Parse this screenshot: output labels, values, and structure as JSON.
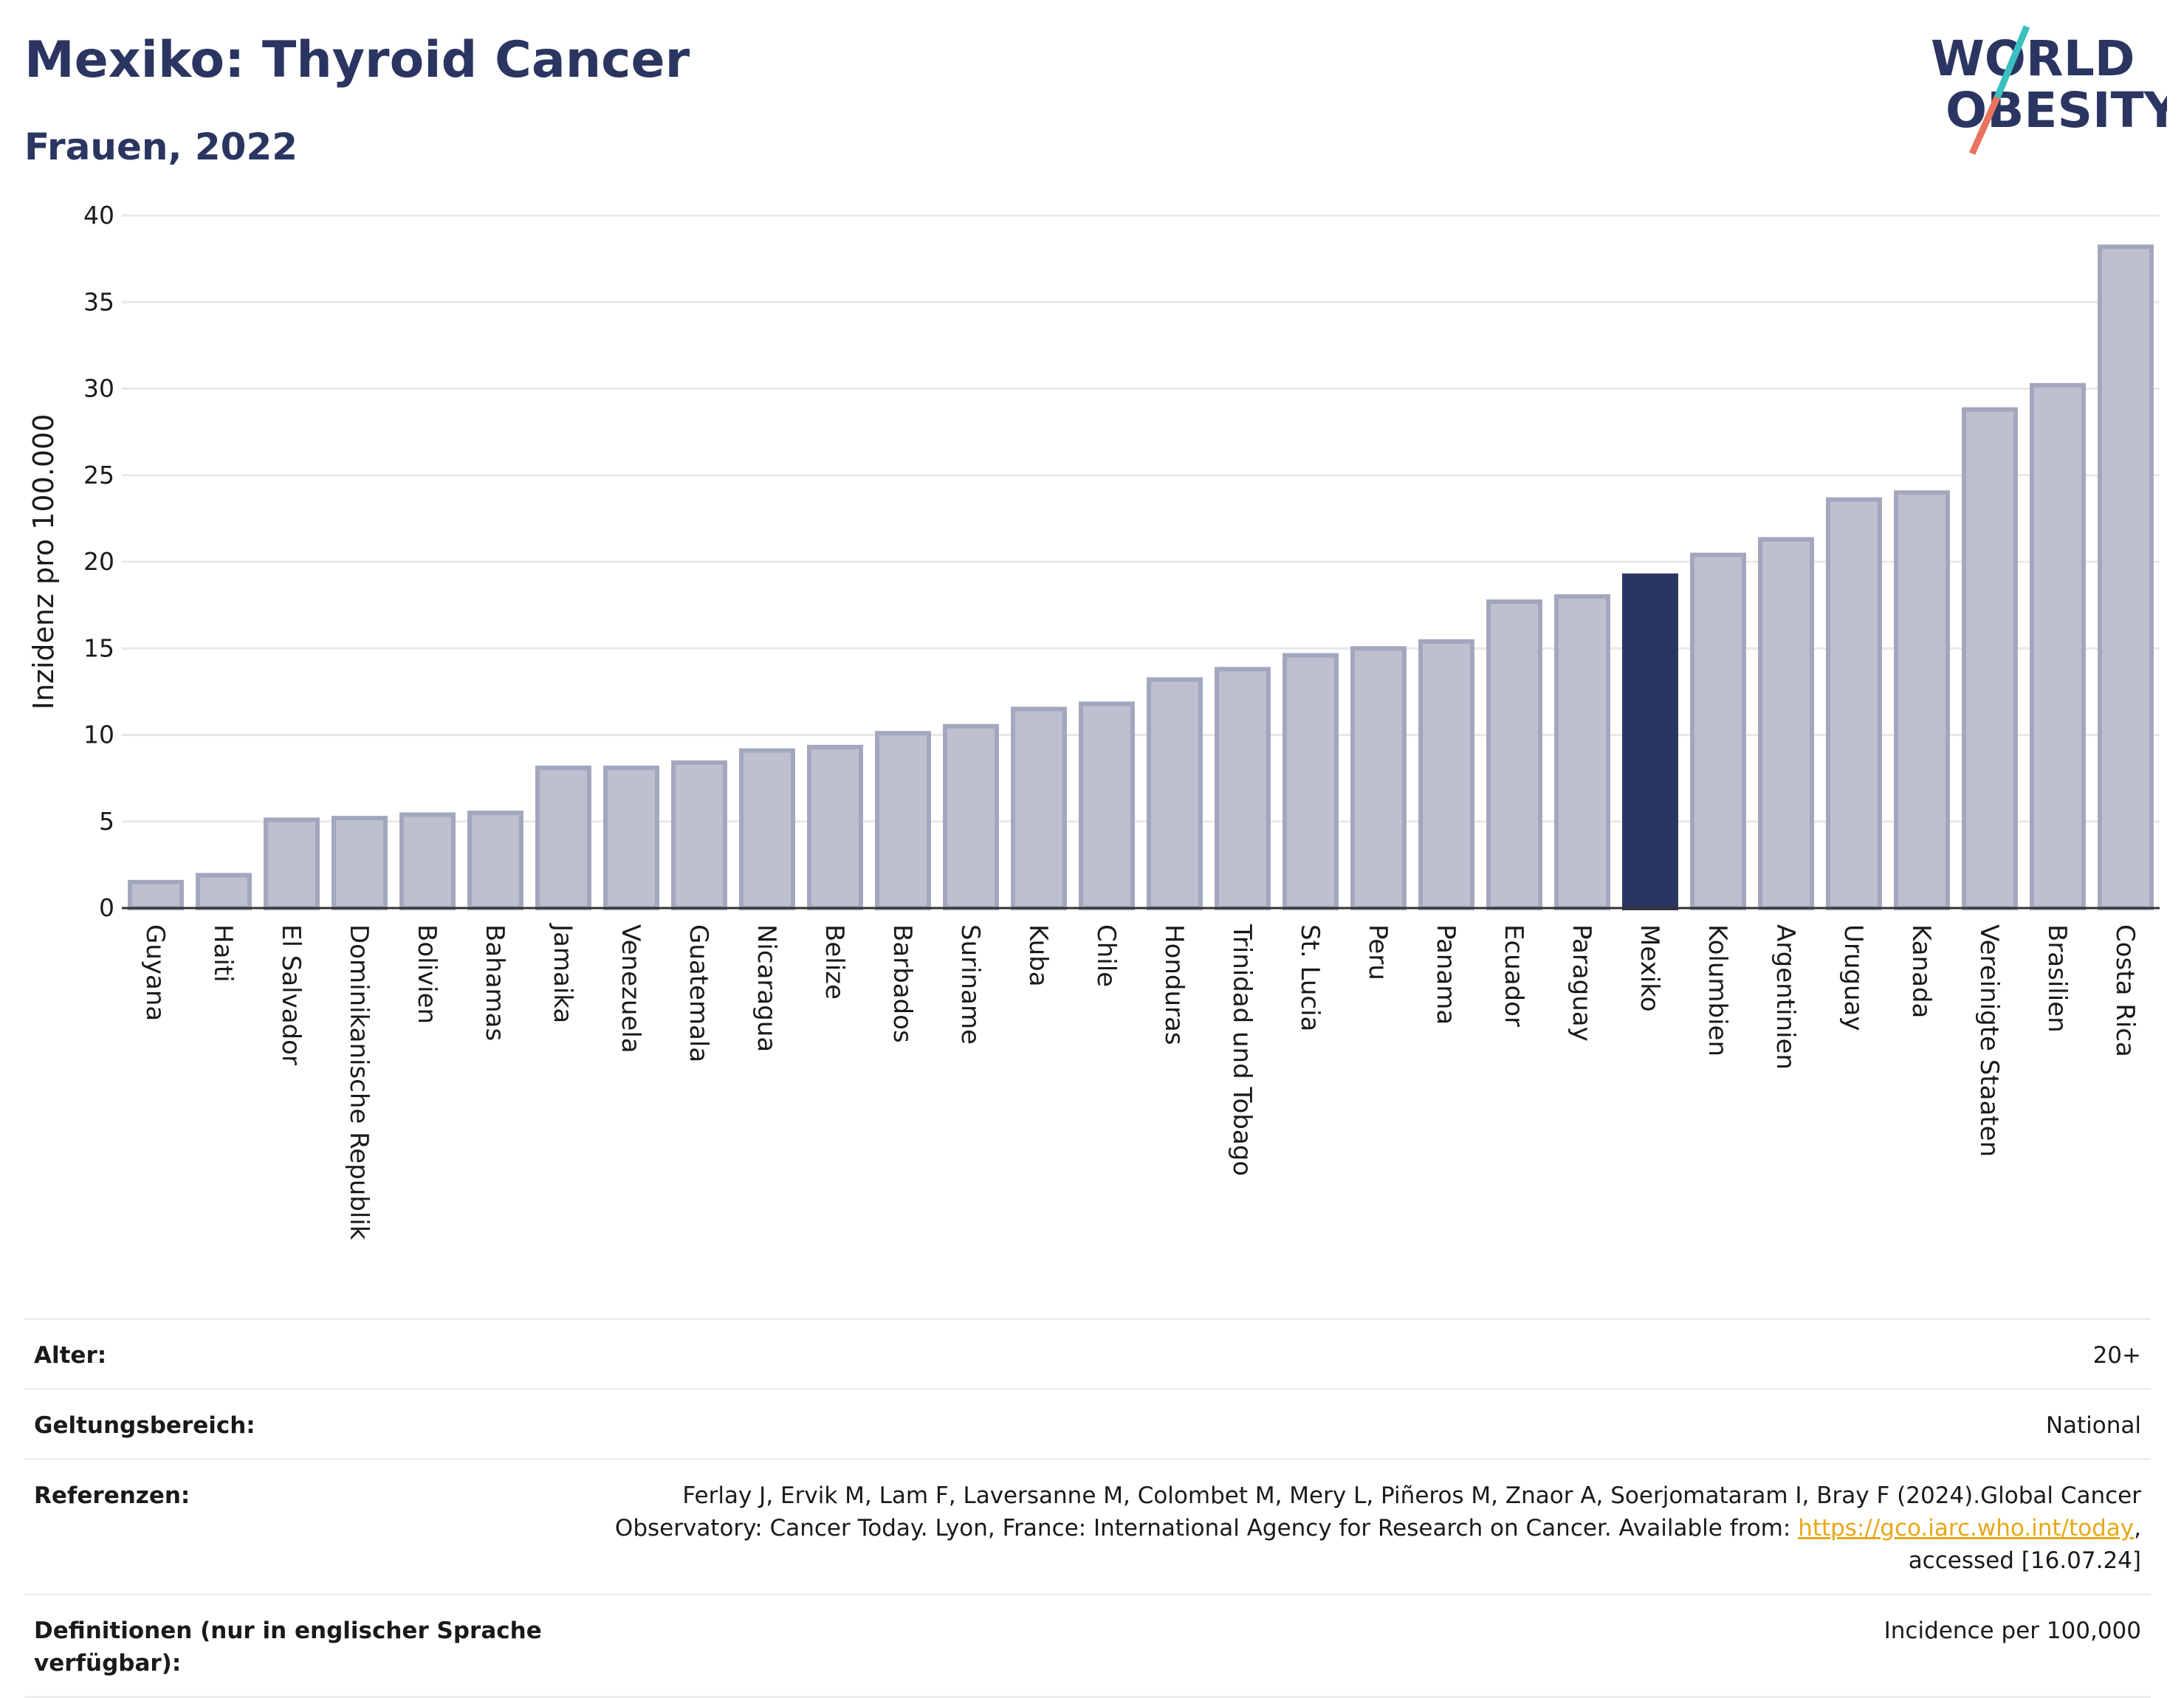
{
  "title": "Mexiko: Thyroid Cancer",
  "subtitle": "Frauen, 2022",
  "logo": {
    "line1": "WORLD",
    "line2": "OBESITY",
    "colors": {
      "text": "#2b3561",
      "slash_teal": "#3bbfbf",
      "slash_coral": "#e8735f"
    }
  },
  "chart_data": {
    "type": "bar",
    "ylabel": "Inzidenz pro 100.000",
    "xlabel": "",
    "ylim": [
      0,
      40
    ],
    "yticks": [
      0,
      5,
      10,
      15,
      20,
      25,
      30,
      35,
      40
    ],
    "grid": true,
    "highlight": "Mexiko",
    "colors": {
      "bar": "#bcc0cf",
      "bar_border": "#a2a7bd",
      "highlight": "#2b3561",
      "grid": "#e8e8e8"
    },
    "categories": [
      "Guyana",
      "Haiti",
      "El Salvador",
      "Dominikanische Republik",
      "Bolivien",
      "Bahamas",
      "Jamaika",
      "Venezuela",
      "Guatemala",
      "Nicaragua",
      "Belize",
      "Barbados",
      "Suriname",
      "Kuba",
      "Chile",
      "Honduras",
      "Trinidad und Tobago",
      "St. Lucia",
      "Peru",
      "Panama",
      "Ecuador",
      "Paraguay",
      "Mexiko",
      "Kolumbien",
      "Argentinien",
      "Uruguay",
      "Kanada",
      "Vereinigte Staaten",
      "Brasilien",
      "Costa Rica"
    ],
    "values": [
      1.5,
      1.9,
      5.1,
      5.2,
      5.4,
      5.5,
      8.1,
      8.1,
      8.4,
      9.1,
      9.3,
      10.1,
      10.5,
      11.5,
      11.8,
      13.2,
      13.8,
      14.6,
      15.0,
      15.4,
      17.7,
      18.0,
      19.2,
      20.4,
      21.3,
      23.6,
      24.0,
      28.8,
      30.2,
      38.2
    ]
  },
  "meta": [
    {
      "label": "Alter:",
      "value": "20+"
    },
    {
      "label": "Geltungsbereich:",
      "value": "National"
    },
    {
      "label": "Referenzen:",
      "value_before": "Ferlay J, Ervik M, Lam F, Laversanne M, Colombet M, Mery L, Piñeros M, Znaor A, Soerjomataram I, Bray F (2024).Global Cancer Observatory: Cancer Today. Lyon, France: International Agency for Research on Cancer. Available from: ",
      "link_text": "https://gco.iarc.who.int/today",
      "value_after": ", accessed [16.07.24]"
    },
    {
      "label": "Definitionen (nur in englischer Sprache verfügbar):",
      "value": "Incidence per 100,000"
    }
  ]
}
